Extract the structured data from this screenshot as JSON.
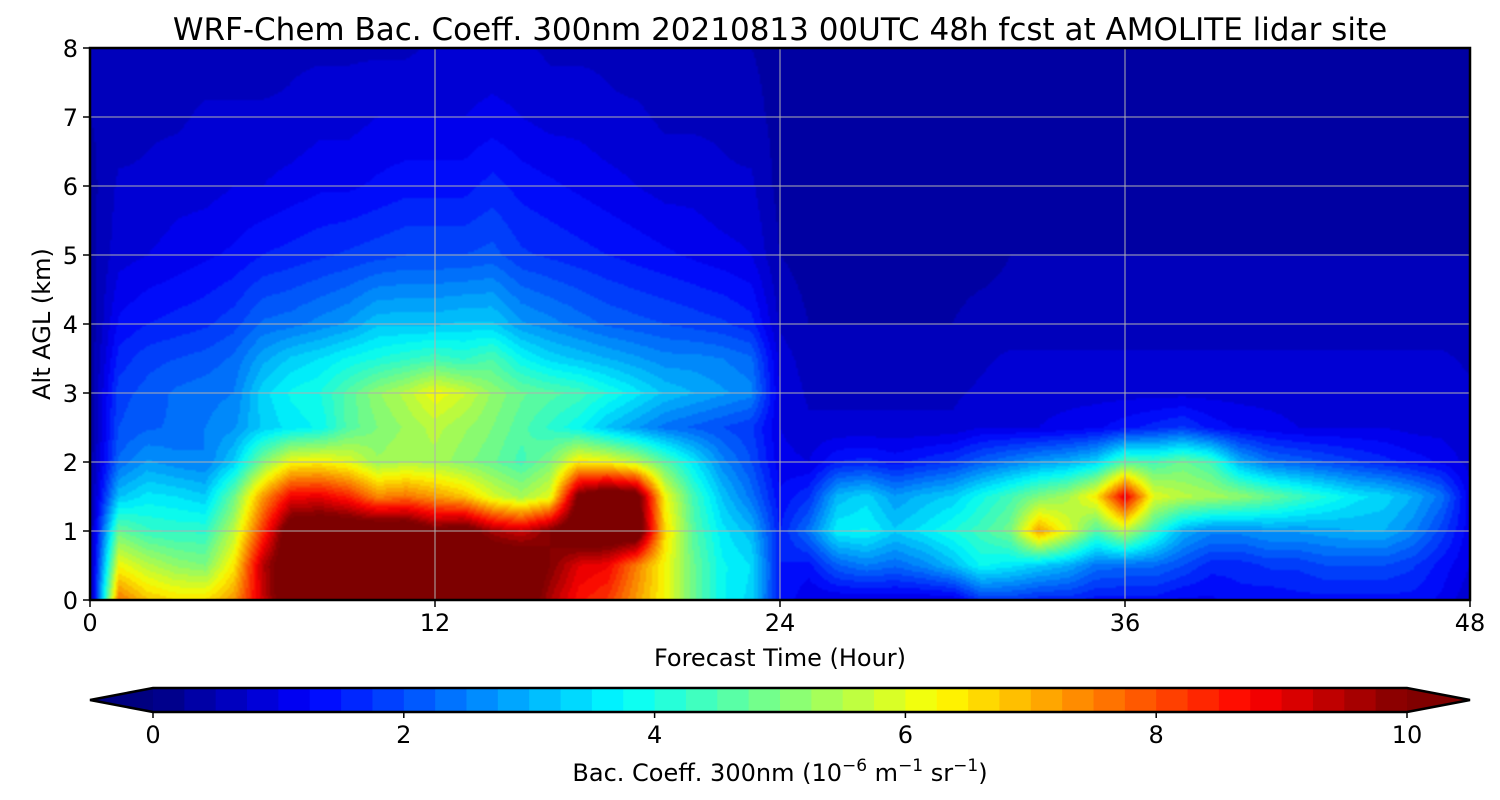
{
  "chart_data": {
    "type": "heatmap",
    "title": "WRF-Chem Bac. Coeff. 300nm  20210813 00UTC 48h fcst at AMOLITE lidar site",
    "xlabel": "Forecast Time (Hour)",
    "ylabel": "Alt AGL (km)",
    "xlim": [
      0,
      48
    ],
    "ylim": [
      0,
      8
    ],
    "x_ticks": [
      "0",
      "12",
      "24",
      "36",
      "48"
    ],
    "y_ticks": [
      "0",
      "1",
      "2",
      "3",
      "4",
      "5",
      "6",
      "7",
      "8"
    ],
    "grid": true,
    "colormap": "jet",
    "colorbar": {
      "label_prefix": "Bac. Coeff. 300nm  (10",
      "label_exp1": "−6",
      "label_mid": " m",
      "label_exp2": "−1",
      "label_mid2": " sr",
      "label_exp3": "−1",
      "label_suffix": ")",
      "min": 0,
      "max": 10,
      "ticks": [
        "0",
        "2",
        "4",
        "6",
        "8",
        "10"
      ],
      "extend": "both",
      "levels": 40
    },
    "x": [
      0,
      1,
      2,
      3,
      4,
      5,
      6,
      7,
      8,
      9,
      10,
      11,
      12,
      13,
      14,
      15,
      16,
      17,
      18,
      19,
      20,
      21,
      22,
      23,
      24,
      25,
      26,
      27,
      28,
      29,
      30,
      31,
      32,
      33,
      34,
      35,
      36,
      37,
      38,
      39,
      40,
      41,
      42,
      43,
      44,
      45,
      46,
      47,
      48
    ],
    "y": [
      0,
      0.5,
      1,
      1.5,
      2,
      2.5,
      3,
      3.5,
      4,
      5,
      6,
      7,
      8
    ],
    "z": [
      [
        0.2,
        7.6,
        6.8,
        6.5,
        6.5,
        7.2,
        9.2,
        11.0,
        11.0,
        11.0,
        11.0,
        11.0,
        11.0,
        11.0,
        11.0,
        11.0,
        9.5,
        8.6,
        8.2,
        7.2,
        6.2,
        4.8,
        3.8,
        3.4,
        1.5,
        1.0,
        1.0,
        1.0,
        1.0,
        1.0,
        1.0,
        1.8,
        1.8,
        1.6,
        1.6,
        1.4,
        1.4,
        1.4,
        1.2,
        1.2,
        1.4,
        1.3,
        1.4,
        1.4,
        1.4,
        1.4,
        1.4,
        1.2,
        0.8
      ],
      [
        0.2,
        6.2,
        5.6,
        5.2,
        5.0,
        6.4,
        9.4,
        11.0,
        11.0,
        11.0,
        11.0,
        11.0,
        11.0,
        11.0,
        11.0,
        11.0,
        10.0,
        9.0,
        8.8,
        7.5,
        6.2,
        4.8,
        3.8,
        3.5,
        1.5,
        1.4,
        2.2,
        2.5,
        2.3,
        2.6,
        3.1,
        3.8,
        3.6,
        3.3,
        3.0,
        2.4,
        2.3,
        2.3,
        2.0,
        1.6,
        1.6,
        1.8,
        1.8,
        2.0,
        2.0,
        2.0,
        1.8,
        1.4,
        1.0
      ],
      [
        0.3,
        4.8,
        4.3,
        4.2,
        4.2,
        5.6,
        8.2,
        10.8,
        11.0,
        11.0,
        11.0,
        11.0,
        10.2,
        10.6,
        9.6,
        9.2,
        10.0,
        11.0,
        11.0,
        11.0,
        6.6,
        4.6,
        3.6,
        3.1,
        1.5,
        2.4,
        3.7,
        3.8,
        3.3,
        3.6,
        4.0,
        4.4,
        4.9,
        7.2,
        6.0,
        4.5,
        5.6,
        4.2,
        3.0,
        2.6,
        2.6,
        2.8,
        2.8,
        2.9,
        3.0,
        3.0,
        2.6,
        1.9,
        1.1
      ],
      [
        0.3,
        3.2,
        3.6,
        3.5,
        3.3,
        4.8,
        7.2,
        8.8,
        8.9,
        8.4,
        7.4,
        7.6,
        7.2,
        6.8,
        5.9,
        5.4,
        6.0,
        10.2,
        11.0,
        10.6,
        6.2,
        4.4,
        3.2,
        2.4,
        1.3,
        1.7,
        3.1,
        3.4,
        2.8,
        3.1,
        3.3,
        3.9,
        4.4,
        5.0,
        5.4,
        6.4,
        9.0,
        6.0,
        5.6,
        5.4,
        5.2,
        4.8,
        4.4,
        4.0,
        3.6,
        3.4,
        3.0,
        2.4,
        1.1
      ],
      [
        0.3,
        2.3,
        2.8,
        2.6,
        2.5,
        3.3,
        5.0,
        6.2,
        6.3,
        6.0,
        5.3,
        5.5,
        5.4,
        5.1,
        4.8,
        4.4,
        5.0,
        6.4,
        6.2,
        5.6,
        4.6,
        3.6,
        2.6,
        2.0,
        1.1,
        1.0,
        1.5,
        1.6,
        1.4,
        1.6,
        1.8,
        2.2,
        2.5,
        2.8,
        3.0,
        3.4,
        4.6,
        4.4,
        4.8,
        4.4,
        3.0,
        2.4,
        2.2,
        2.0,
        1.8,
        1.6,
        1.4,
        1.2,
        0.9
      ],
      [
        0.3,
        2.0,
        2.2,
        2.3,
        2.5,
        2.7,
        3.3,
        3.6,
        3.8,
        4.6,
        5.0,
        5.3,
        5.6,
        5.3,
        5.0,
        4.6,
        4.2,
        3.8,
        3.2,
        2.8,
        2.4,
        2.2,
        2.0,
        1.8,
        1.0,
        0.8,
        0.8,
        0.8,
        0.8,
        0.8,
        0.8,
        1.0,
        1.0,
        1.0,
        1.1,
        1.2,
        1.4,
        1.6,
        1.8,
        1.4,
        1.2,
        1.1,
        1.0,
        1.0,
        1.0,
        1.0,
        0.9,
        0.9,
        0.8
      ],
      [
        0.3,
        1.9,
        2.1,
        2.3,
        2.4,
        2.5,
        3.4,
        3.8,
        4.0,
        4.6,
        5.2,
        5.6,
        6.2,
        5.8,
        5.2,
        4.8,
        4.6,
        4.4,
        4.0,
        3.6,
        3.2,
        3.0,
        2.8,
        2.6,
        1.0,
        0.7,
        0.7,
        0.7,
        0.7,
        0.7,
        0.7,
        0.8,
        0.9,
        0.9,
        0.9,
        0.9,
        0.9,
        0.9,
        0.9,
        0.9,
        0.9,
        0.9,
        0.9,
        0.9,
        0.9,
        0.9,
        0.9,
        0.9,
        0.8
      ],
      [
        0.3,
        1.6,
        1.9,
        2.0,
        2.1,
        2.3,
        2.9,
        3.3,
        3.5,
        3.8,
        4.0,
        4.2,
        4.4,
        4.2,
        4.5,
        3.8,
        3.4,
        3.2,
        3.0,
        2.8,
        2.6,
        2.6,
        2.5,
        2.3,
        0.9,
        0.6,
        0.6,
        0.6,
        0.6,
        0.6,
        0.6,
        0.7,
        0.8,
        0.8,
        0.8,
        0.8,
        0.8,
        0.8,
        0.8,
        0.8,
        0.8,
        0.8,
        0.8,
        0.8,
        0.8,
        0.8,
        0.8,
        0.8,
        0.7
      ],
      [
        0.3,
        1.3,
        1.5,
        1.6,
        1.7,
        1.9,
        2.3,
        2.4,
        2.6,
        2.8,
        3.2,
        3.2,
        3.2,
        3.3,
        3.3,
        2.8,
        2.6,
        2.4,
        2.2,
        2.1,
        2.0,
        1.9,
        1.8,
        1.6,
        0.7,
        0.5,
        0.5,
        0.5,
        0.5,
        0.5,
        0.5,
        0.6,
        0.6,
        0.6,
        0.6,
        0.6,
        0.6,
        0.6,
        0.6,
        0.6,
        0.6,
        0.6,
        0.6,
        0.6,
        0.6,
        0.6,
        0.6,
        0.6,
        0.6
      ],
      [
        0.4,
        0.9,
        1.0,
        1.1,
        1.2,
        1.3,
        1.5,
        1.6,
        1.7,
        1.8,
        1.9,
        2.0,
        2.0,
        2.0,
        2.1,
        1.8,
        1.7,
        1.6,
        1.5,
        1.4,
        1.3,
        1.2,
        1.1,
        1.0,
        0.5,
        0.4,
        0.4,
        0.4,
        0.4,
        0.4,
        0.4,
        0.4,
        0.5,
        0.5,
        0.5,
        0.5,
        0.5,
        0.5,
        0.5,
        0.5,
        0.5,
        0.5,
        0.5,
        0.5,
        0.5,
        0.5,
        0.5,
        0.5,
        0.5
      ],
      [
        0.4,
        0.8,
        0.8,
        0.9,
        0.9,
        1.0,
        1.0,
        1.1,
        1.2,
        1.2,
        1.3,
        1.4,
        1.4,
        1.4,
        1.6,
        1.4,
        1.3,
        1.2,
        1.1,
        1.0,
        0.9,
        0.9,
        0.8,
        0.8,
        0.4,
        0.3,
        0.3,
        0.3,
        0.3,
        0.3,
        0.3,
        0.3,
        0.4,
        0.4,
        0.4,
        0.4,
        0.4,
        0.4,
        0.4,
        0.4,
        0.4,
        0.4,
        0.4,
        0.4,
        0.4,
        0.4,
        0.4,
        0.4,
        0.4
      ],
      [
        0.5,
        0.6,
        0.7,
        0.7,
        0.8,
        0.8,
        0.8,
        0.8,
        0.9,
        0.9,
        1.0,
        1.0,
        1.0,
        1.0,
        1.1,
        1.0,
        0.9,
        0.9,
        0.8,
        0.8,
        0.7,
        0.7,
        0.7,
        0.6,
        0.4,
        0.3,
        0.3,
        0.3,
        0.3,
        0.3,
        0.3,
        0.3,
        0.3,
        0.3,
        0.3,
        0.3,
        0.4,
        0.4,
        0.4,
        0.4,
        0.4,
        0.4,
        0.4,
        0.4,
        0.4,
        0.4,
        0.4,
        0.4,
        0.4
      ],
      [
        0.5,
        0.5,
        0.6,
        0.6,
        0.6,
        0.6,
        0.6,
        0.7,
        0.7,
        0.7,
        0.7,
        0.7,
        0.8,
        0.8,
        0.8,
        0.8,
        0.7,
        0.7,
        0.7,
        0.6,
        0.6,
        0.6,
        0.5,
        0.5,
        0.4,
        0.3,
        0.3,
        0.3,
        0.3,
        0.3,
        0.3,
        0.3,
        0.3,
        0.3,
        0.3,
        0.3,
        0.3,
        0.3,
        0.3,
        0.3,
        0.3,
        0.3,
        0.3,
        0.3,
        0.3,
        0.3,
        0.3,
        0.3,
        0.3
      ]
    ]
  }
}
